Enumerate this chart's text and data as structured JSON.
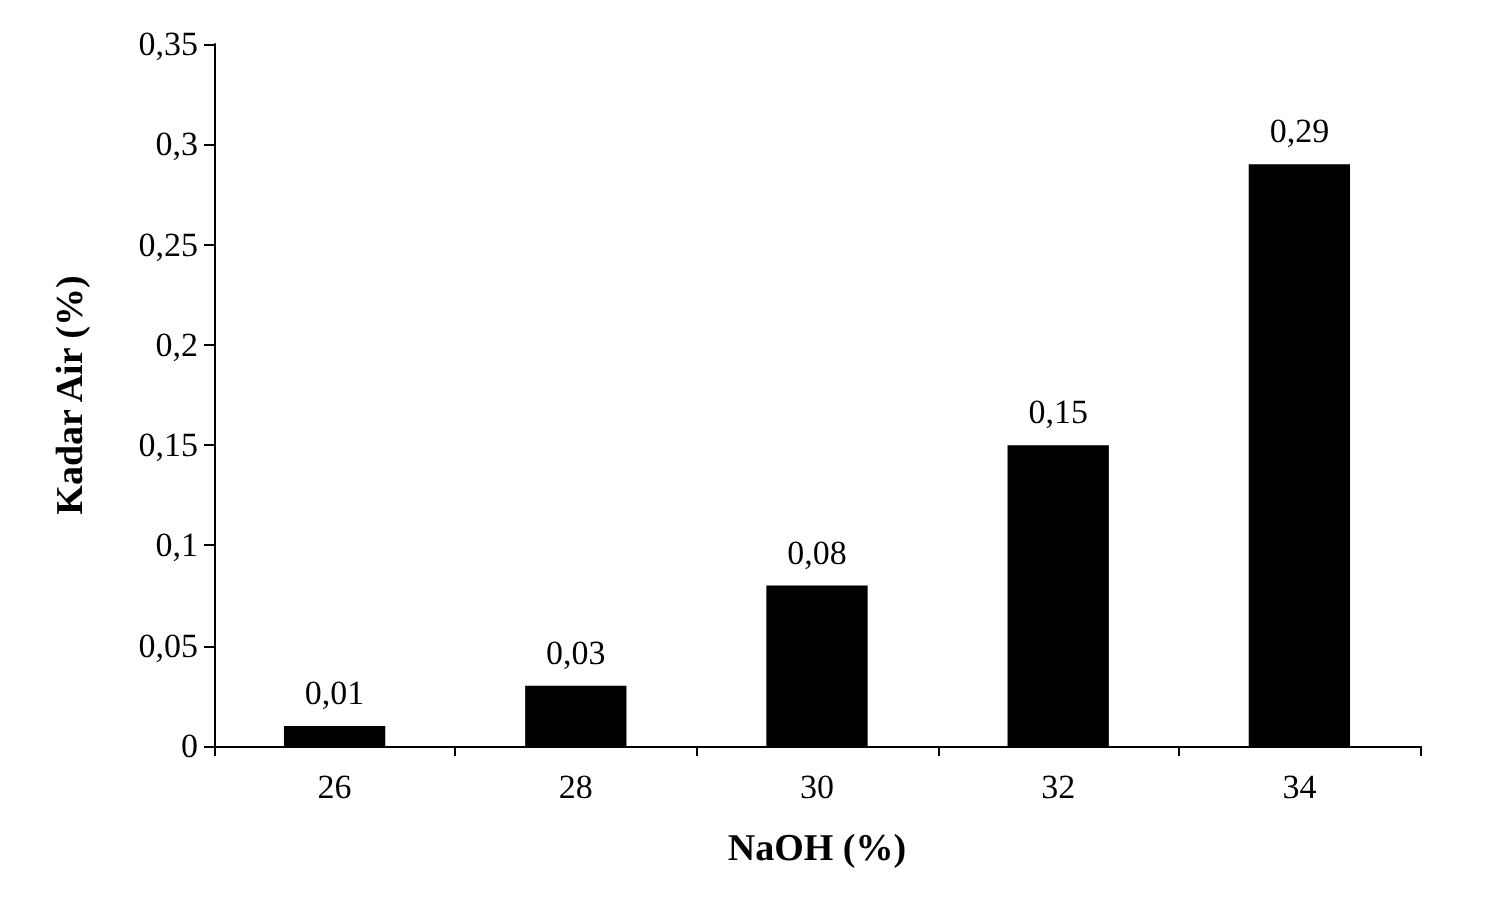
{
  "chart_data": {
    "type": "bar",
    "xlabel": "NaOH (%)",
    "ylabel": "Kadar Air (%)",
    "categories": [
      "26",
      "28",
      "30",
      "32",
      "34"
    ],
    "values": [
      0.01,
      0.03,
      0.08,
      0.15,
      0.29
    ],
    "value_labels": [
      "0,01",
      "0,03",
      "0,08",
      "0,15",
      "0,29"
    ],
    "color": "#000000",
    "ylim": [
      0,
      0.35
    ],
    "yticks": [
      {
        "value": 0,
        "label": "0"
      },
      {
        "value": 0.05,
        "label": "0,05"
      },
      {
        "value": 0.1,
        "label": "0,1"
      },
      {
        "value": 0.15,
        "label": "0,15"
      },
      {
        "value": 0.2,
        "label": "0,2"
      },
      {
        "value": 0.25,
        "label": "0,25"
      },
      {
        "value": 0.3,
        "label": "0,3"
      },
      {
        "value": 0.35,
        "label": "0,35"
      }
    ],
    "grid": false
  }
}
